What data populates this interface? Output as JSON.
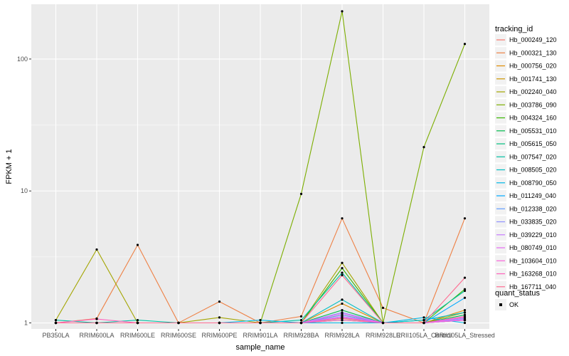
{
  "chart_data": {
    "type": "line",
    "xlabel": "sample_name",
    "ylabel": "FPKM + 1",
    "y_scale": "log10",
    "ylim": [
      0.9,
      260
    ],
    "yticks": [
      1,
      10,
      100
    ],
    "grid": true,
    "legend_position": "right",
    "categories": [
      "PB350LA",
      "RRIM600LA",
      "RRIM600LE",
      "RRIM600SE",
      "RRIM600PE",
      "RRIM901LA",
      "RRIM928BA",
      "RRIM928LA",
      "RRIM928LE",
      "RRII105LA_Control",
      "RRII105LA_Stressed"
    ],
    "series": [
      {
        "name": "Hb_000249_120",
        "color": "#F8766D",
        "values": [
          1.0,
          1.0,
          1.0,
          1.0,
          1.0,
          1.0,
          1.0,
          1.08,
          1.0,
          1.0,
          1.05
        ]
      },
      {
        "name": "Hb_000321_130",
        "color": "#EE8044",
        "values": [
          1.0,
          1.08,
          3.9,
          1.0,
          1.45,
          1.0,
          1.12,
          6.2,
          1.3,
          1.0,
          6.2
        ]
      },
      {
        "name": "Hb_000756_020",
        "color": "#E08B00",
        "values": [
          1.0,
          1.0,
          1.0,
          1.0,
          1.0,
          1.0,
          1.0,
          1.4,
          1.0,
          1.0,
          1.25
        ]
      },
      {
        "name": "Hb_001741_130",
        "color": "#CC9600",
        "values": [
          1.0,
          1.0,
          1.0,
          1.0,
          1.0,
          1.0,
          1.0,
          1.15,
          1.0,
          1.0,
          1.1
        ]
      },
      {
        "name": "Hb_002240_040",
        "color": "#A3A500",
        "values": [
          1.05,
          3.6,
          1.0,
          1.0,
          1.1,
          1.0,
          1.0,
          2.85,
          1.0,
          1.0,
          1.2
        ]
      },
      {
        "name": "Hb_003786_090",
        "color": "#7CAE00",
        "values": [
          1.0,
          1.0,
          1.0,
          1.0,
          1.0,
          1.0,
          9.5,
          230.0,
          1.0,
          21.5,
          130.0
        ]
      },
      {
        "name": "Hb_004324_160",
        "color": "#39B600",
        "values": [
          1.0,
          1.0,
          1.0,
          1.0,
          1.0,
          1.0,
          1.0,
          2.6,
          1.0,
          1.0,
          1.8
        ]
      },
      {
        "name": "Hb_005531_010",
        "color": "#00BB4E",
        "values": [
          1.0,
          1.0,
          1.0,
          1.0,
          1.0,
          1.0,
          1.0,
          1.25,
          1.0,
          1.0,
          1.15
        ]
      },
      {
        "name": "Hb_005615_050",
        "color": "#00BF7D",
        "values": [
          1.0,
          1.0,
          1.0,
          1.0,
          1.0,
          1.0,
          1.0,
          1.05,
          1.0,
          1.0,
          1.05
        ]
      },
      {
        "name": "Hb_007547_020",
        "color": "#00C1A3",
        "values": [
          1.05,
          1.0,
          1.05,
          1.0,
          1.0,
          1.0,
          1.05,
          2.4,
          1.0,
          1.05,
          1.75
        ]
      },
      {
        "name": "Hb_008505_020",
        "color": "#00BFC4",
        "values": [
          1.0,
          1.0,
          1.0,
          1.0,
          1.0,
          1.0,
          1.0,
          1.5,
          1.0,
          1.05,
          1.2
        ]
      },
      {
        "name": "Hb_008790_050",
        "color": "#00B8E7",
        "values": [
          1.0,
          1.0,
          1.0,
          1.0,
          1.0,
          1.05,
          1.0,
          1.0,
          1.0,
          1.1,
          1.0
        ]
      },
      {
        "name": "Hb_011249_040",
        "color": "#00A9FF",
        "values": [
          1.0,
          1.0,
          1.0,
          1.0,
          1.0,
          1.0,
          1.0,
          1.1,
          1.0,
          1.0,
          1.55
        ]
      },
      {
        "name": "Hb_012338_020",
        "color": "#619CFF",
        "values": [
          1.0,
          1.0,
          1.0,
          1.0,
          1.0,
          1.0,
          1.0,
          1.15,
          1.0,
          1.0,
          1.05
        ]
      },
      {
        "name": "Hb_033835_020",
        "color": "#8F91FF",
        "values": [
          1.0,
          1.0,
          1.0,
          1.0,
          1.0,
          1.0,
          1.0,
          1.2,
          1.0,
          1.0,
          1.08
        ]
      },
      {
        "name": "Hb_039229_010",
        "color": "#C77CFF",
        "values": [
          1.0,
          1.0,
          1.0,
          1.0,
          1.0,
          1.0,
          1.0,
          1.12,
          1.0,
          1.0,
          1.06
        ]
      },
      {
        "name": "Hb_080749_010",
        "color": "#E76BF3",
        "values": [
          1.0,
          1.0,
          1.0,
          1.0,
          1.0,
          1.0,
          1.0,
          1.18,
          1.0,
          1.0,
          1.1
        ]
      },
      {
        "name": "Hb_103604_010",
        "color": "#FA62DB",
        "values": [
          1.0,
          1.0,
          1.0,
          1.0,
          1.0,
          1.0,
          1.0,
          1.1,
          1.0,
          1.0,
          1.05
        ]
      },
      {
        "name": "Hb_163268_010",
        "color": "#FF62BC",
        "values": [
          1.0,
          1.07,
          1.0,
          1.0,
          1.0,
          1.0,
          1.0,
          1.05,
          1.0,
          1.0,
          1.12
        ]
      },
      {
        "name": "Hb_167711_040",
        "color": "#FF6C91",
        "values": [
          1.0,
          1.0,
          1.0,
          1.0,
          1.0,
          1.0,
          1.0,
          2.3,
          1.0,
          1.0,
          2.2
        ]
      }
    ],
    "legend_title": "tracking_id",
    "shape_legend": {
      "title": "quant_status",
      "items": [
        "OK"
      ]
    },
    "colors": {
      "panel_bg": "#EBEBEB",
      "grid_major": "#FFFFFF",
      "point": "#000000"
    }
  }
}
